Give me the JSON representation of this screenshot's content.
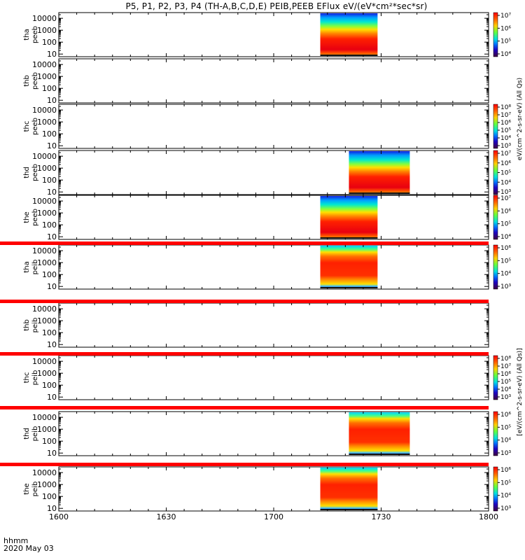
{
  "title": "P5, P1, P2, P3, P4 (TH-A,B,C,D,E) PEIB,PEEB EFlux eV/(eV*cm²*sec*sr)",
  "corner_labels": {
    "format": "hhmm",
    "date": "2020 May 03"
  },
  "colorbar_title_e": "eV/(cm^2-s-sr-eV) (All Qs)",
  "colorbar_title_i": "[eV/(cm^2-s-sr-eV) (All Qs)]",
  "chart_data": {
    "type": "heatmap",
    "x_axis": {
      "ticks": [
        "1600",
        "1630",
        "1700",
        "1730",
        "1800"
      ],
      "range_minutes": [
        0,
        120
      ]
    },
    "y_axis": {
      "scale": "log",
      "ticks": [
        "10",
        "100",
        "1000",
        "10000"
      ],
      "range": [
        6,
        30000
      ]
    },
    "panels": [
      {
        "label1": "tha",
        "label2": "peeb",
        "has_data": true,
        "t_start": 73,
        "t_end": 89,
        "colorbar": [
          "10⁴",
          "10⁵",
          "10⁶",
          "10⁷"
        ],
        "red_stripe_below": false
      },
      {
        "label1": "thb",
        "label2": "peeb",
        "has_data": false,
        "colorbar": [],
        "red_stripe_below": false
      },
      {
        "label1": "thc",
        "label2": "peeb",
        "has_data": false,
        "colorbar": [
          "10³",
          "10⁴",
          "10⁵",
          "10⁶",
          "10⁷",
          "10⁸"
        ],
        "red_stripe_below": false
      },
      {
        "label1": "thd",
        "label2": "peeb",
        "has_data": true,
        "t_start": 81,
        "t_end": 98,
        "colorbar": [
          "10³",
          "10⁴",
          "10⁵",
          "10⁶",
          "10⁷"
        ],
        "red_stripe_below": false
      },
      {
        "label1": "the",
        "label2": "peeb",
        "has_data": true,
        "t_start": 73,
        "t_end": 89,
        "colorbar": [
          "10⁴",
          "10⁵",
          "10⁶",
          "10⁷"
        ],
        "red_stripe_below": true
      },
      {
        "label1": "tha",
        "label2": "peib",
        "has_data": true,
        "t_start": 73,
        "t_end": 89,
        "colorbar": [
          "10³",
          "10⁴",
          "10⁵",
          "10⁶"
        ],
        "red_stripe_below": true
      },
      {
        "label1": "thb",
        "label2": "peib",
        "has_data": false,
        "colorbar": [],
        "red_stripe_below": true
      },
      {
        "label1": "thc",
        "label2": "peib",
        "has_data": false,
        "colorbar": [
          "10³",
          "10⁴",
          "10⁵",
          "10⁶",
          "10⁷",
          "10⁸"
        ],
        "red_stripe_below": true
      },
      {
        "label1": "thd",
        "label2": "peib",
        "has_data": true,
        "t_start": 81,
        "t_end": 98,
        "colorbar": [
          "10³",
          "10⁴",
          "10⁵",
          "10⁶"
        ],
        "red_stripe_below": true
      },
      {
        "label1": "the",
        "label2": "peib",
        "has_data": true,
        "t_start": 73,
        "t_end": 89,
        "colorbar": [
          "10³",
          "10⁴",
          "10⁵",
          "10⁶"
        ],
        "red_stripe_below": false
      }
    ]
  }
}
